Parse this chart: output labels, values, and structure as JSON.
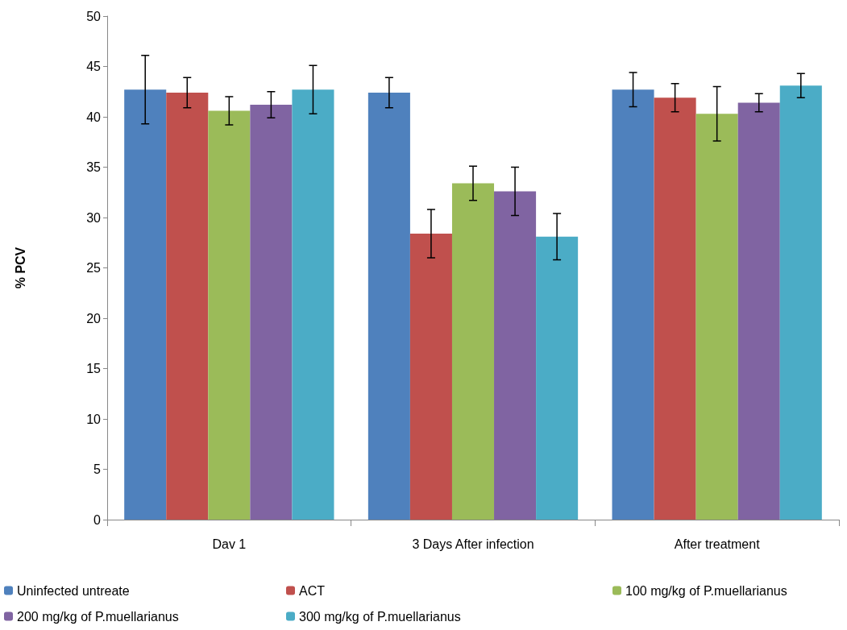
{
  "chart_data": {
    "type": "bar",
    "ylabel": "% PCV",
    "categories": [
      "Dav 1",
      "3 Days After infection",
      "After treatment"
    ],
    "series": [
      {
        "name": "Uninfected untreate",
        "color": "#4f81bd",
        "values": [
          42.7,
          42.4,
          42.7
        ],
        "errors": [
          3.4,
          1.5,
          1.7
        ]
      },
      {
        "name": "ACT",
        "color": "#c0504d",
        "values": [
          42.4,
          28.4,
          41.9
        ],
        "errors": [
          1.5,
          2.4,
          1.4
        ]
      },
      {
        "name": "100 mg/kg of P.muellarianus",
        "color": "#9bbb59",
        "values": [
          40.6,
          33.4,
          40.3
        ],
        "errors": [
          1.4,
          1.7,
          2.7
        ]
      },
      {
        "name": "200 mg/kg of P.muellarianus",
        "color": "#8064a2",
        "values": [
          41.2,
          32.6,
          41.4
        ],
        "errors": [
          1.3,
          2.4,
          0.9
        ]
      },
      {
        "name": "300 mg/kg of P.muellarianus",
        "color": "#4bacc6",
        "values": [
          42.7,
          28.1,
          43.1
        ],
        "errors": [
          2.4,
          2.3,
          1.2
        ]
      }
    ],
    "ylim": [
      0,
      50
    ],
    "yticks": [
      0,
      5,
      10,
      15,
      20,
      25,
      30,
      35,
      40,
      45,
      50
    ],
    "grid": false,
    "legend": "bottom"
  }
}
